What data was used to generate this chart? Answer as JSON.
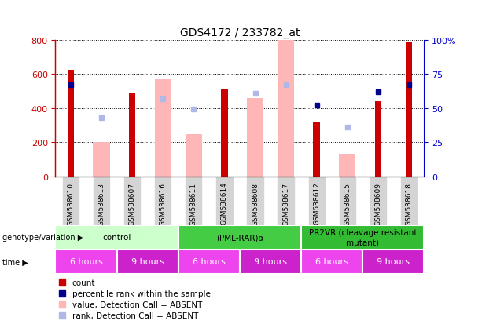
{
  "title": "GDS4172 / 233782_at",
  "samples": [
    "GSM538610",
    "GSM538613",
    "GSM538607",
    "GSM538616",
    "GSM538611",
    "GSM538614",
    "GSM538608",
    "GSM538617",
    "GSM538612",
    "GSM538615",
    "GSM538609",
    "GSM538618"
  ],
  "count_values": [
    625,
    null,
    490,
    null,
    null,
    510,
    null,
    null,
    320,
    null,
    440,
    790
  ],
  "rank_values": [
    67,
    null,
    null,
    null,
    null,
    null,
    null,
    null,
    52,
    null,
    62,
    67
  ],
  "absent_value": [
    null,
    200,
    null,
    570,
    245,
    null,
    460,
    800,
    null,
    130,
    null,
    null
  ],
  "absent_rank": [
    null,
    43,
    null,
    57,
    49,
    null,
    61,
    67,
    null,
    36,
    null,
    null
  ],
  "ylim_left": [
    0,
    800
  ],
  "ylim_right": [
    0,
    100
  ],
  "ytick_labels_left": [
    "0",
    "200",
    "400",
    "600",
    "800"
  ],
  "ytick_labels_right": [
    "0",
    "25",
    "50",
    "75",
    "100%"
  ],
  "count_color": "#cc0000",
  "rank_color": "#00008b",
  "absent_value_color": "#ffb6b6",
  "absent_rank_color": "#b0b8e8",
  "genotype_groups": [
    {
      "label": "control",
      "start": 0,
      "end": 4,
      "color": "#ccffcc"
    },
    {
      "label": "(PML-RAR)α",
      "start": 4,
      "end": 8,
      "color": "#44cc44"
    },
    {
      "label": "PR2VR (cleavage resistant\nmutant)",
      "start": 8,
      "end": 12,
      "color": "#33bb33"
    }
  ],
  "time_groups": [
    {
      "label": "6 hours",
      "start": 0,
      "end": 2,
      "color": "#ee44ee"
    },
    {
      "label": "9 hours",
      "start": 2,
      "end": 4,
      "color": "#cc22cc"
    },
    {
      "label": "6 hours",
      "start": 4,
      "end": 6,
      "color": "#ee44ee"
    },
    {
      "label": "9 hours",
      "start": 6,
      "end": 8,
      "color": "#cc22cc"
    },
    {
      "label": "6 hours",
      "start": 8,
      "end": 10,
      "color": "#ee44ee"
    },
    {
      "label": "9 hours",
      "start": 10,
      "end": 12,
      "color": "#cc22cc"
    }
  ],
  "legend_items": [
    {
      "label": "count",
      "color": "#cc0000"
    },
    {
      "label": "percentile rank within the sample",
      "color": "#00008b"
    },
    {
      "label": "value, Detection Call = ABSENT",
      "color": "#ffb6b6"
    },
    {
      "label": "rank, Detection Call = ABSENT",
      "color": "#b0b8e8"
    }
  ],
  "genotype_label": "genotype/variation",
  "time_label": "time",
  "left_axis_color": "#cc0000",
  "right_axis_color": "#0000cc",
  "bg_color": "#ffffff",
  "plot_bg_color": "#ffffff",
  "xticklabel_bg": "#d4d4d4"
}
